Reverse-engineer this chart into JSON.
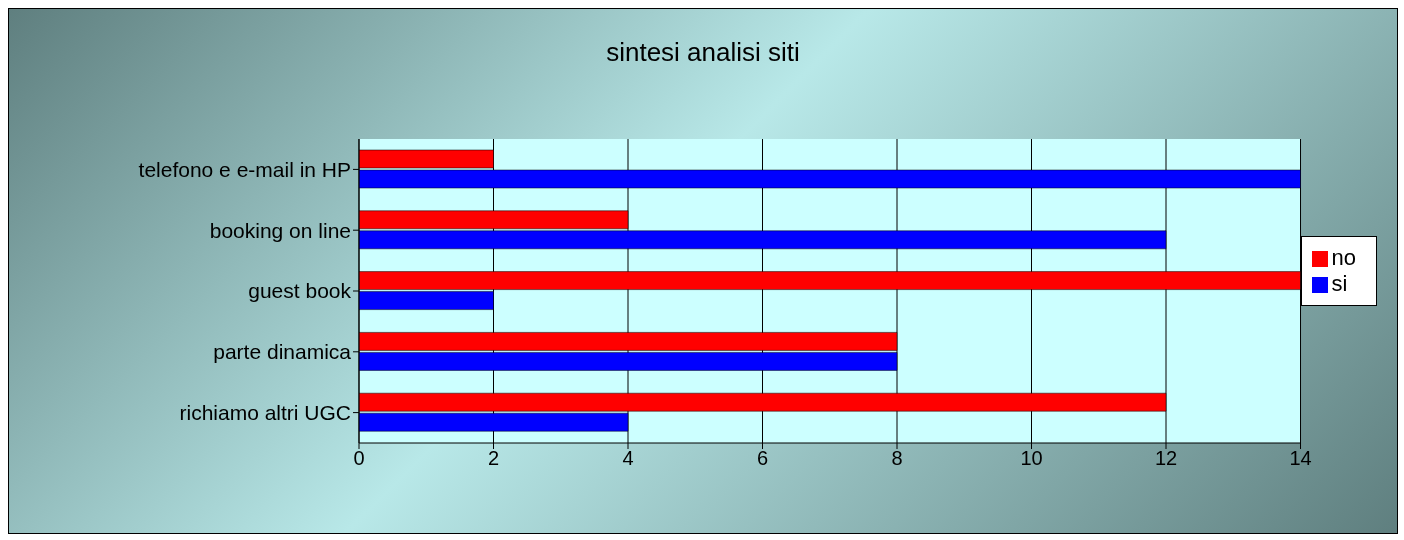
{
  "chart_data": {
    "type": "bar",
    "orientation": "horizontal",
    "title": "sintesi analisi siti",
    "categories": [
      "telefono e e-mail in HP",
      "booking on line",
      "guest book",
      "parte dinamica",
      "richiamo altri UGC"
    ],
    "series": [
      {
        "name": "no",
        "color": "#ff0000",
        "values": [
          2,
          4,
          14,
          8,
          12
        ]
      },
      {
        "name": "si",
        "color": "#0000ff",
        "values": [
          14,
          12,
          2,
          8,
          4
        ]
      }
    ],
    "xlim": [
      0,
      14
    ],
    "xticks": [
      0,
      2,
      4,
      6,
      8,
      10,
      12,
      14
    ],
    "grid": "x",
    "legend": "right"
  }
}
